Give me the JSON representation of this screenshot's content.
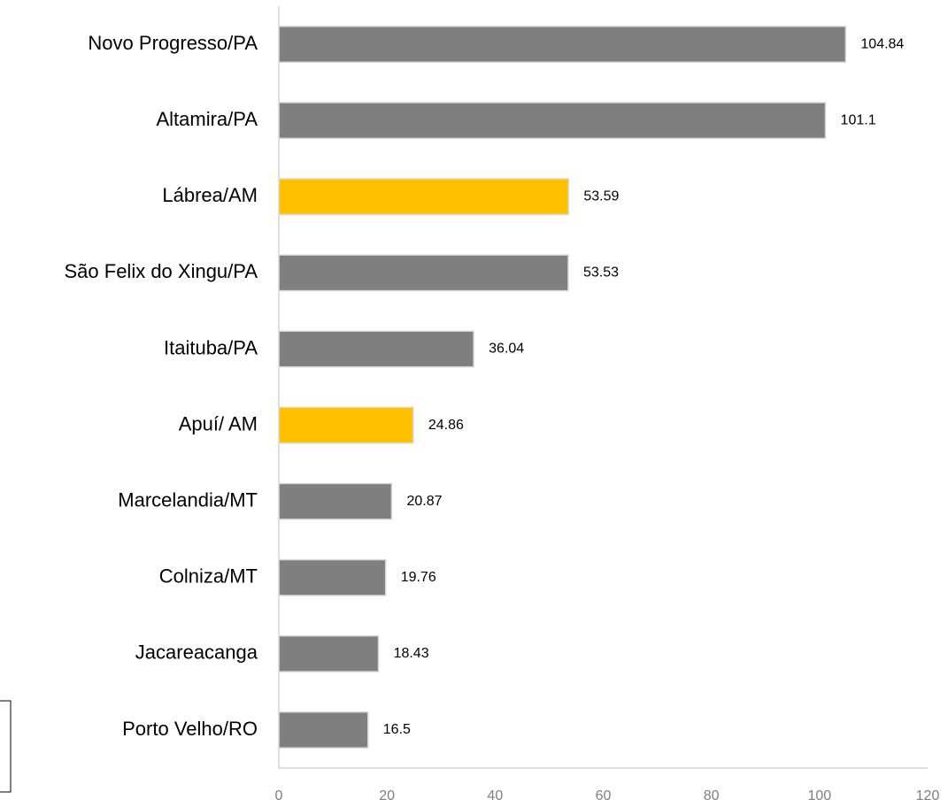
{
  "chart_data": {
    "type": "bar",
    "orientation": "horizontal",
    "categories": [
      "Novo Progresso/PA",
      "Altamira/PA",
      "Lábrea/AM",
      "São Felix do Xingu/PA",
      "Itaituba/PA",
      "Apuí/ AM",
      "Marcelandia/MT",
      "Colniza/MT",
      "Jacareacanga",
      "Porto Velho/RO"
    ],
    "values": [
      104.84,
      101.1,
      53.59,
      53.53,
      36.04,
      24.86,
      20.87,
      19.76,
      18.43,
      16.5
    ],
    "colors": [
      "#7f7f7f",
      "#7f7f7f",
      "#ffc000",
      "#7f7f7f",
      "#7f7f7f",
      "#ffc000",
      "#7f7f7f",
      "#7f7f7f",
      "#7f7f7f",
      "#7f7f7f"
    ],
    "xlim": [
      0,
      120
    ],
    "xticks": [
      0,
      20,
      40,
      60,
      80,
      100,
      120
    ],
    "grid": false
  }
}
